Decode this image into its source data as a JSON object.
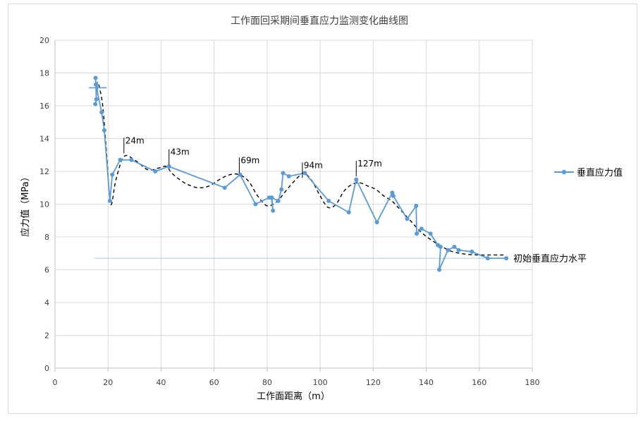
{
  "chart_data": {
    "type": "line",
    "title": "工作面回采期间垂直应力监测变化曲线图",
    "xlabel": "工作面距离（m）",
    "ylabel": "应力值（MPa）",
    "xlim": [
      0,
      180
    ],
    "ylim": [
      0,
      20
    ],
    "xticks": [
      0,
      20,
      40,
      60,
      80,
      100,
      120,
      140,
      160,
      180
    ],
    "yticks": [
      0,
      2,
      4,
      6,
      8,
      10,
      12,
      14,
      16,
      18,
      20
    ],
    "grid": true,
    "legend_position": "right",
    "colors": {
      "series": "#5b9bd5",
      "trend": "#000000",
      "baseline": "#5b9bd5",
      "grid": "#d9d9d9",
      "axis": "#bfbfbf"
    },
    "series": [
      {
        "name": "垂直应力值",
        "x": [
          15.2,
          15.6,
          15.3,
          15.4,
          17.6,
          18.6,
          20.7,
          21.6,
          24.6,
          28.8,
          37.8,
          43.0,
          64.0,
          69.8,
          75.6,
          80.8,
          81.8,
          82.2,
          81.6,
          84.2,
          85.4,
          86.0,
          88.2,
          94.2,
          103.2,
          110.8,
          113.6,
          121.4,
          127.2,
          127.6,
          132.8,
          136.2,
          136.4,
          138.2,
          141.6,
          144.4,
          145.4,
          144.9,
          148.2,
          150.6,
          152.2,
          157.2,
          163.2,
          170.2
        ],
        "y": [
          16.1,
          16.4,
          17.7,
          17.3,
          15.6,
          14.5,
          10.2,
          11.8,
          12.7,
          12.7,
          12.0,
          12.3,
          11.0,
          11.8,
          10.0,
          10.4,
          10.4,
          9.6,
          10.4,
          10.2,
          10.9,
          11.9,
          11.7,
          11.9,
          10.2,
          9.5,
          11.5,
          8.9,
          10.7,
          10.5,
          9.1,
          9.9,
          8.2,
          8.5,
          8.2,
          7.5,
          7.4,
          6.0,
          7.2,
          7.4,
          7.2,
          7.1,
          6.7,
          6.7
        ]
      }
    ],
    "trend_line": {
      "x": [
        16.5,
        18,
        19.5,
        21,
        23,
        26,
        30,
        35,
        39,
        42,
        44,
        47,
        50,
        54,
        58,
        62,
        66,
        69.5,
        73,
        76,
        79,
        81,
        84,
        88,
        92,
        94,
        97,
        100,
        103,
        106,
        109,
        112,
        115,
        118,
        121,
        124,
        127,
        130,
        134,
        138,
        142,
        146,
        150,
        155,
        160,
        165,
        170
      ],
      "y": [
        17.3,
        16.0,
        13.0,
        10.0,
        11.5,
        12.9,
        12.7,
        12.1,
        12.2,
        12.3,
        11.9,
        11.5,
        11.2,
        11.0,
        11.1,
        11.5,
        11.8,
        11.8,
        11.4,
        10.6,
        10.0,
        9.9,
        10.2,
        11.0,
        11.7,
        11.9,
        11.4,
        10.5,
        9.8,
        10.0,
        10.8,
        11.2,
        11.3,
        11.1,
        10.9,
        10.5,
        10.2,
        9.7,
        9.0,
        8.3,
        7.8,
        7.4,
        7.1,
        6.95,
        6.9,
        6.9,
        6.9
      ]
    },
    "baseline": {
      "label": "初始垂直应力水平",
      "y": 6.7,
      "x_range": [
        15,
        170
      ]
    },
    "annotations": [
      {
        "label": "24m",
        "x": 26,
        "y": 13.1
      },
      {
        "label": "43m",
        "x": 43,
        "y": 12.4
      },
      {
        "label": "69m",
        "x": 69.5,
        "y": 11.9
      },
      {
        "label": "94m",
        "x": 93.3,
        "y": 11.6
      },
      {
        "label": "127m",
        "x": 113.6,
        "y": 11.7
      }
    ],
    "marker_cross": {
      "x": 16,
      "y": 17.1
    }
  }
}
